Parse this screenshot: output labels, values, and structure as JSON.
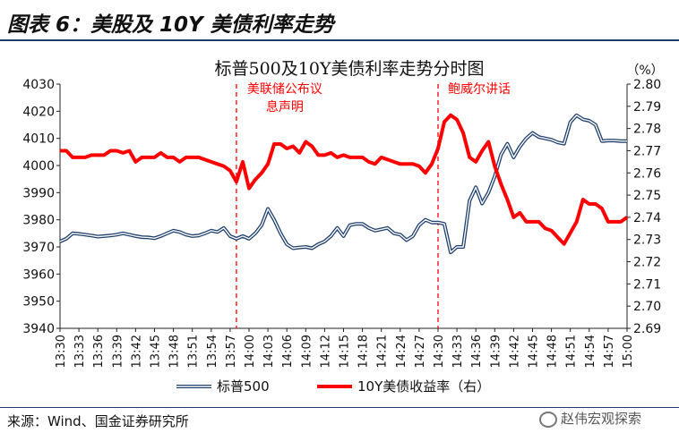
{
  "figure_label": "图表 6：美股及 10Y 美债利率走势",
  "source": "来源：Wind、国金证券研究所",
  "watermark": "赵伟宏观探索",
  "colors": {
    "spx": "#1f3f6d",
    "yield": "#ff0000",
    "vline": "#ff0000",
    "annotation": "#ff0000"
  },
  "chart_data": {
    "type": "line",
    "title": "标普500及10Y美债利率走势分时图",
    "x_tick_labels": [
      "13:30",
      "13:33",
      "13:36",
      "13:39",
      "13:42",
      "13:45",
      "13:48",
      "13:51",
      "13:54",
      "13:57",
      "14:00",
      "14:03",
      "14:06",
      "14:09",
      "14:12",
      "14:15",
      "14:18",
      "14:21",
      "14:24",
      "14:27",
      "14:30",
      "14:33",
      "14:36",
      "14:39",
      "14:42",
      "14:45",
      "14:48",
      "14:51",
      "14:54",
      "14:57",
      "15:00"
    ],
    "y_left": {
      "min": 3940,
      "max": 4030,
      "step": 10
    },
    "y_right": {
      "min": 2.69,
      "max": 2.8,
      "step": 0.01,
      "unit_label": "（%）"
    },
    "grid": false,
    "legend_position": "bottom",
    "annotations": [
      {
        "x": "13:58",
        "text_lines": [
          "美联储公布议",
          "息声明"
        ]
      },
      {
        "x": "14:30",
        "text_lines": [
          "鲍威尔讲话"
        ]
      }
    ],
    "series": [
      {
        "name": "标普500",
        "axis": "left",
        "x": [
          "13:30",
          "13:31",
          "13:32",
          "13:33",
          "13:34",
          "13:35",
          "13:36",
          "13:37",
          "13:38",
          "13:39",
          "13:40",
          "13:41",
          "13:42",
          "13:43",
          "13:44",
          "13:45",
          "13:46",
          "13:47",
          "13:48",
          "13:49",
          "13:50",
          "13:51",
          "13:52",
          "13:53",
          "13:54",
          "13:55",
          "13:56",
          "13:57",
          "13:58",
          "13:59",
          "14:00",
          "14:01",
          "14:02",
          "14:03",
          "14:04",
          "14:05",
          "14:06",
          "14:07",
          "14:08",
          "14:09",
          "14:10",
          "14:11",
          "14:12",
          "14:13",
          "14:14",
          "14:15",
          "14:16",
          "14:17",
          "14:18",
          "14:19",
          "14:20",
          "14:21",
          "14:22",
          "14:23",
          "14:24",
          "14:25",
          "14:26",
          "14:27",
          "14:28",
          "14:29",
          "14:30",
          "14:31",
          "14:32",
          "14:33",
          "14:34",
          "14:35",
          "14:36",
          "14:37",
          "14:38",
          "14:39",
          "14:40",
          "14:41",
          "14:42",
          "14:43",
          "14:44",
          "14:45",
          "14:46",
          "14:47",
          "14:48",
          "14:49",
          "14:50",
          "14:51",
          "14:52",
          "14:53",
          "14:54",
          "14:55",
          "14:56",
          "14:57",
          "14:58",
          "14:59",
          "15:00"
        ],
        "values": [
          3972,
          3973,
          3975,
          3974.8,
          3974.5,
          3974.2,
          3973.8,
          3974,
          3974.2,
          3974.5,
          3975,
          3974.5,
          3974,
          3973.6,
          3973.5,
          3973.2,
          3974,
          3975,
          3976,
          3975.5,
          3974.5,
          3974,
          3974.2,
          3975,
          3976,
          3975.5,
          3977,
          3974,
          3973,
          3974,
          3973,
          3975,
          3978,
          3984,
          3980,
          3975,
          3971,
          3969.5,
          3969.8,
          3970,
          3969.5,
          3971,
          3972,
          3974,
          3977,
          3974,
          3978,
          3978.5,
          3978.5,
          3977,
          3976,
          3976.5,
          3977,
          3975,
          3974.5,
          3972.5,
          3974,
          3978,
          3980,
          3979,
          3979,
          3978.5,
          3968,
          3970,
          3970,
          3987,
          3992,
          3986,
          3990,
          3996,
          4004,
          4008,
          4003,
          4007,
          4010,
          4012,
          4010.5,
          4010,
          4009.5,
          4008.5,
          4008,
          4016,
          4018.5,
          4017,
          4016.5,
          4015,
          4009,
          4009.2,
          4009.2,
          4009,
          4009
        ]
      },
      {
        "name": "10Y美债收益率（右）",
        "axis": "right",
        "x": [
          "13:30",
          "13:31",
          "13:32",
          "13:33",
          "13:34",
          "13:35",
          "13:36",
          "13:37",
          "13:38",
          "13:39",
          "13:40",
          "13:41",
          "13:42",
          "13:43",
          "13:44",
          "13:45",
          "13:46",
          "13:47",
          "13:48",
          "13:49",
          "13:50",
          "13:51",
          "13:52",
          "13:53",
          "13:54",
          "13:55",
          "13:56",
          "13:57",
          "13:58",
          "13:59",
          "14:00",
          "14:01",
          "14:02",
          "14:03",
          "14:04",
          "14:05",
          "14:06",
          "14:07",
          "14:08",
          "14:09",
          "14:10",
          "14:11",
          "14:12",
          "14:13",
          "14:14",
          "14:15",
          "14:16",
          "14:17",
          "14:18",
          "14:19",
          "14:20",
          "14:21",
          "14:22",
          "14:23",
          "14:24",
          "14:25",
          "14:26",
          "14:27",
          "14:28",
          "14:29",
          "14:30",
          "14:31",
          "14:32",
          "14:33",
          "14:34",
          "14:35",
          "14:36",
          "14:37",
          "14:38",
          "14:39",
          "14:40",
          "14:41",
          "14:42",
          "14:43",
          "14:44",
          "14:45",
          "14:46",
          "14:47",
          "14:48",
          "14:49",
          "14:50",
          "14:51",
          "14:52",
          "14:53",
          "14:54",
          "14:55",
          "14:56",
          "14:57",
          "14:58",
          "14:59",
          "15:00"
        ],
        "values": [
          2.77,
          2.77,
          2.767,
          2.767,
          2.767,
          2.768,
          2.768,
          2.768,
          2.77,
          2.77,
          2.769,
          2.77,
          2.765,
          2.767,
          2.767,
          2.767,
          2.769,
          2.767,
          2.767,
          2.765,
          2.767,
          2.767,
          2.767,
          2.766,
          2.765,
          2.764,
          2.763,
          2.761,
          2.756,
          2.765,
          2.753,
          2.757,
          2.76,
          2.764,
          2.773,
          2.773,
          2.771,
          2.772,
          2.769,
          2.774,
          2.772,
          2.768,
          2.768,
          2.769,
          2.767,
          2.768,
          2.767,
          2.767,
          2.767,
          2.765,
          2.764,
          2.767,
          2.766,
          2.765,
          2.764,
          2.764,
          2.764,
          2.763,
          2.76,
          2.764,
          2.771,
          2.783,
          2.786,
          2.784,
          2.778,
          2.767,
          2.765,
          2.77,
          2.774,
          2.763,
          2.755,
          2.748,
          2.74,
          2.742,
          2.738,
          2.738,
          2.738,
          2.735,
          2.734,
          2.731,
          2.728,
          2.733,
          2.738,
          2.748,
          2.746,
          2.746,
          2.744,
          2.738,
          2.738,
          2.738,
          2.74
        ]
      }
    ]
  }
}
